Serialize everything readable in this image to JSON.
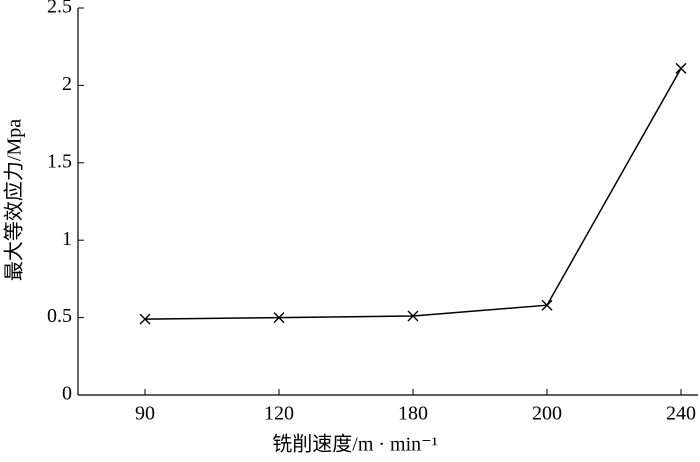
{
  "chart_data": {
    "type": "line",
    "x_label": "铣削速度/m · min⁻¹",
    "y_label": "最大等效应力/Mpa",
    "categories": [
      "90",
      "120",
      "180",
      "200",
      "240"
    ],
    "series": [
      {
        "values": [
          0.49,
          0.5,
          0.51,
          0.58,
          2.11
        ],
        "color": "#000000",
        "marker": "x"
      }
    ],
    "ylim": [
      0,
      2.5
    ],
    "yticks": [
      0,
      0.5,
      1,
      1.5,
      2,
      2.5
    ],
    "grid": false
  }
}
